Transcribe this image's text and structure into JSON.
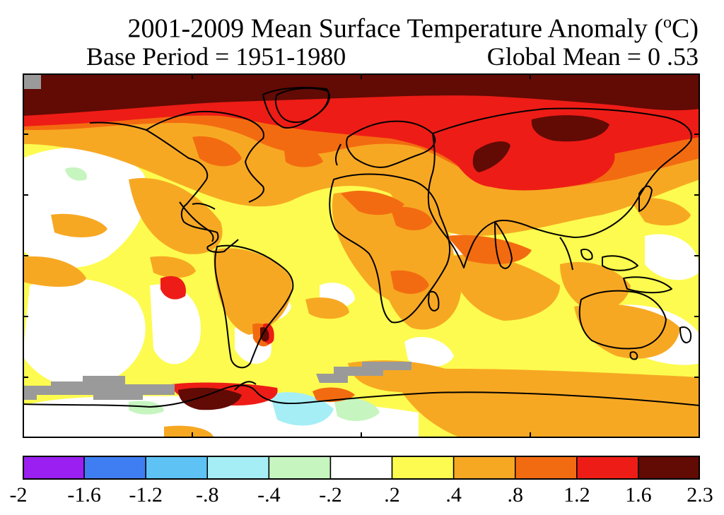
{
  "title": {
    "main": "2001-2009 Mean Surface Temperature Anomaly (",
    "superscript": "o",
    "unit_tail": "C)",
    "base_period": "Base Period = 1951-1980",
    "global_mean": "Global Mean = 0 .53"
  },
  "legend": {
    "bins": [
      {
        "from": "-2",
        "to": "-1.6",
        "color": "#9b1ff0"
      },
      {
        "from": "-1.6",
        "to": "-1.2",
        "color": "#3f7ef2"
      },
      {
        "from": "-1.2",
        "to": "-.8",
        "color": "#5ec2f5"
      },
      {
        "from": "-.8",
        "to": "-.4",
        "color": "#a6eef6"
      },
      {
        "from": "-.4",
        "to": "-.2",
        "color": "#c6f5c0"
      },
      {
        "from": "-.2",
        "to": ".2",
        "color": "#ffffff"
      },
      {
        "from": ".2",
        "to": ".4",
        "color": "#fdfb4f"
      },
      {
        "from": ".4",
        "to": ".8",
        "color": "#f7a823"
      },
      {
        "from": ".8",
        "to": "1.2",
        "color": "#f36b10"
      },
      {
        "from": "1.2",
        "to": "1.6",
        "color": "#ee1c16"
      },
      {
        "from": "1.6",
        "to": "2.3",
        "color": "#620a04"
      }
    ],
    "tick_labels": [
      "-2",
      "-1.6",
      "-1.2",
      "-.8",
      "-.4",
      "-.2",
      ".2",
      ".4",
      ".8",
      "1.2",
      "1.6",
      "2.3"
    ],
    "missing_color": "#9a9a9a"
  },
  "colors": {
    "coast": "#000000",
    "frame": "#000000"
  }
}
